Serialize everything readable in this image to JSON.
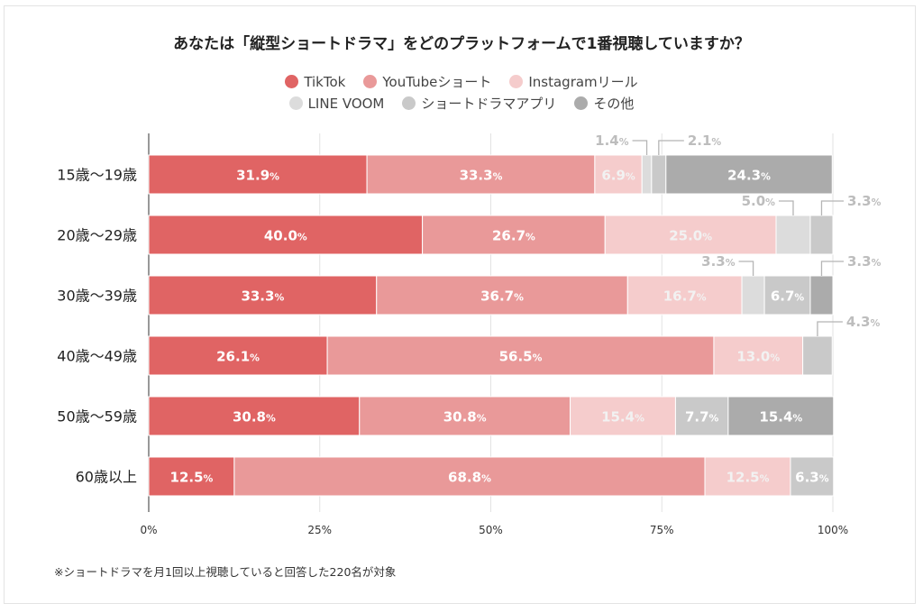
{
  "chart_data": {
    "type": "bar",
    "orientation": "horizontal",
    "stacked": true,
    "title": "あなたは「縦型ショートドラマ」をどのプラットフォームで1番視聴していますか？",
    "categories": [
      "15歳〜19歳",
      "20歳〜29歳",
      "30歳〜39歳",
      "40歳〜49歳",
      "50歳〜59歳",
      "60歳以上"
    ],
    "series": [
      {
        "name": "TikTok",
        "color": "#e06464",
        "values": [
          31.9,
          40.0,
          33.3,
          26.1,
          30.8,
          12.5
        ]
      },
      {
        "name": "YouTubeショート",
        "color": "#e99999",
        "values": [
          33.3,
          26.7,
          36.7,
          56.5,
          30.8,
          68.8
        ]
      },
      {
        "name": "Instagramリール",
        "color": "#f5cccc",
        "values": [
          6.9,
          25.0,
          16.7,
          13.0,
          15.4,
          12.5
        ]
      },
      {
        "name": "LINE VOOM",
        "color": "#dcdcdc",
        "values": [
          1.4,
          5.0,
          3.3,
          0,
          0,
          0
        ]
      },
      {
        "name": "ショートドラマアプリ",
        "color": "#c9c9c9",
        "values": [
          2.1,
          3.3,
          6.7,
          4.3,
          7.7,
          6.3
        ]
      },
      {
        "name": "その他",
        "color": "#ababab",
        "values": [
          24.3,
          0,
          3.3,
          0,
          15.4,
          0
        ]
      }
    ],
    "xlim": [
      0,
      100
    ],
    "xticks": [
      "0%",
      "25%",
      "50%",
      "75%",
      "100%"
    ],
    "grid": true,
    "legend_position": "top"
  },
  "footnote": "※ショートドラマを月1回以上視聴していると回答した220名が対象"
}
